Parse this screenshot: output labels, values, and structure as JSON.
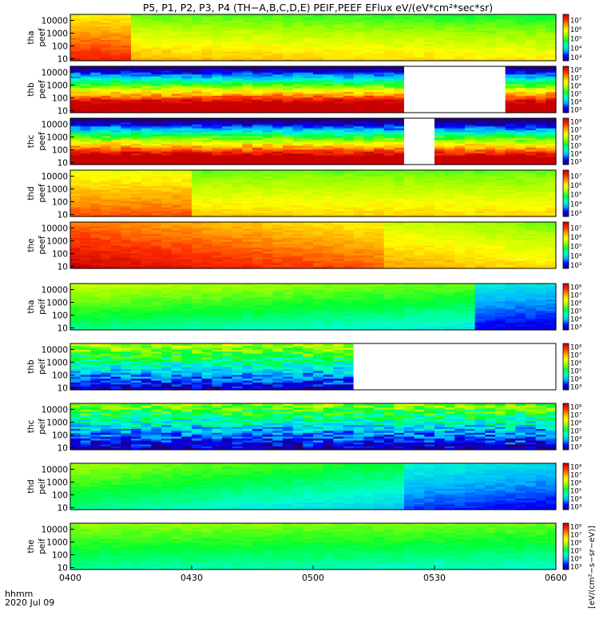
{
  "title": "P5, P1, P2, P3, P4 (TH−A,B,C,D,E) PEIF,PEEF EFlux eV/(eV*cm²*sec*sr)",
  "time_axis": {
    "row_label": "hhmm",
    "date_label": "2020 Jul 09",
    "tick_labels": [
      "0400",
      "0430",
      "0500",
      "0530",
      "0600"
    ]
  },
  "colorbar_label": "[eV/(cm²−s−sr−eV)]",
  "colors": {
    "missing": "#ffffff",
    "frame": "#000000",
    "colormap": [
      "#20007a",
      "#0000ff",
      "#00b4ff",
      "#00ffd0",
      "#00ff30",
      "#a0ff00",
      "#ffff00",
      "#ffa000",
      "#ff3000",
      "#c80000"
    ]
  },
  "chart_data": {
    "type": "heatmap",
    "x_range_minutes": [
      0,
      120
    ],
    "x_ticks": [
      "0400",
      "0430",
      "0500",
      "0530",
      "0600"
    ],
    "y_scale": "log",
    "y_range_eV": [
      7,
      30000
    ],
    "y_tick_labels": [
      "10",
      "100",
      "1000",
      "10000"
    ],
    "panels": [
      {
        "id": "tha_peef",
        "probe": "tha",
        "species": "peef",
        "label_top": "tha",
        "label_bottom": "peef",
        "cbar_ticks": [
          "10³",
          "10⁴",
          "10⁵",
          "10⁶",
          "10⁷"
        ],
        "cbar_range_exp": [
          2.6,
          7.6
        ],
        "gaps": [],
        "base": 5.9,
        "trend": -0.4,
        "e_slope": -0.35,
        "features": [
          {
            "type": "bump",
            "t0": 0,
            "t1": 15,
            "amp": 0.8
          }
        ]
      },
      {
        "id": "thb_peef",
        "probe": "thb",
        "species": "peef",
        "label_top": "thb",
        "label_bottom": "peef",
        "cbar_ticks": [
          "10³",
          "10⁴",
          "10⁵",
          "10⁶",
          "10⁷",
          "10⁸"
        ],
        "cbar_range_exp": [
          2.6,
          8.4
        ],
        "gaps": [
          [
            82,
            107
          ]
        ],
        "base": 6.6,
        "trend": 0,
        "e_slope": -2.2,
        "features": [
          {
            "type": "noise",
            "amp": 0.35
          }
        ]
      },
      {
        "id": "thc_peef",
        "probe": "thc",
        "species": "peef",
        "label_top": "thc",
        "label_bottom": "peef",
        "cbar_ticks": [
          "10³",
          "10⁴",
          "10⁵",
          "10⁶",
          "10⁷",
          "10⁸"
        ],
        "cbar_range_exp": [
          2.6,
          8.4
        ],
        "gaps": [
          [
            82,
            89
          ]
        ],
        "base": 6.6,
        "trend": -0.3,
        "e_slope": -2.2,
        "features": [
          {
            "type": "noise",
            "amp": 0.35
          }
        ]
      },
      {
        "id": "thd_peef",
        "probe": "thd",
        "species": "peef",
        "label_top": "thd",
        "label_bottom": "peef",
        "cbar_ticks": [
          "10³",
          "10⁴",
          "10⁵",
          "10⁶",
          "10⁷"
        ],
        "cbar_range_exp": [
          2.6,
          7.6
        ],
        "gaps": [],
        "base": 5.8,
        "trend": -0.1,
        "e_slope": -0.3,
        "features": [
          {
            "type": "bump",
            "t0": 0,
            "t1": 30,
            "amp": 0.6
          }
        ]
      },
      {
        "id": "the_peef",
        "probe": "the",
        "species": "peef",
        "label_top": "the",
        "label_bottom": "peef",
        "cbar_ticks": [
          "10³",
          "10⁴",
          "10⁵",
          "10⁶",
          "10⁷"
        ],
        "cbar_range_exp": [
          2.6,
          7.6
        ],
        "gaps": [],
        "base": 6.9,
        "trend": -1.2,
        "e_slope": -0.25,
        "features": [
          {
            "type": "bump",
            "t0": 0,
            "t1": 78,
            "amp": 0.3
          }
        ]
      },
      {
        "id": "tha_peif",
        "probe": "tha",
        "species": "peif",
        "label_top": "tha",
        "label_bottom": "peif",
        "cbar_ticks": [
          "10³",
          "10⁴",
          "10⁵",
          "10⁶",
          "10⁷",
          "10⁸"
        ],
        "cbar_range_exp": [
          2.6,
          8.4
        ],
        "gaps": [],
        "base": 5.4,
        "trend": -0.6,
        "e_slope": 0.35,
        "features": [
          {
            "type": "bump",
            "t0": 100,
            "t1": 120,
            "amp": -1.2
          }
        ]
      },
      {
        "id": "thb_peif",
        "probe": "thb",
        "species": "peif",
        "label_top": "thb",
        "label_bottom": "peif",
        "cbar_ticks": [
          "10³",
          "10⁴",
          "10⁵",
          "10⁶",
          "10⁷",
          "10⁸"
        ],
        "cbar_range_exp": [
          2.6,
          8.4
        ],
        "gaps": [
          [
            71,
            120
          ]
        ],
        "base": 4.3,
        "trend": 0,
        "e_slope": 0.9,
        "features": [
          {
            "type": "noise",
            "amp": 0.5
          }
        ]
      },
      {
        "id": "thc_peif",
        "probe": "thc",
        "species": "peif",
        "label_top": "thc",
        "label_bottom": "peif",
        "cbar_ticks": [
          "10³",
          "10⁴",
          "10⁵",
          "10⁶",
          "10⁷",
          "10⁸"
        ],
        "cbar_range_exp": [
          2.6,
          8.4
        ],
        "gaps": [],
        "base": 4.1,
        "trend": 0,
        "e_slope": 0.85,
        "features": [
          {
            "type": "noise",
            "amp": 0.6
          }
        ]
      },
      {
        "id": "thd_peif",
        "probe": "thd",
        "species": "peif",
        "label_top": "thd",
        "label_bottom": "peif",
        "cbar_ticks": [
          "10³",
          "10⁴",
          "10⁵",
          "10⁶",
          "10⁷",
          "10⁸"
        ],
        "cbar_range_exp": [
          2.6,
          8.4
        ],
        "gaps": [],
        "base": 5.3,
        "trend": -1.1,
        "e_slope": 0.3,
        "features": [
          {
            "type": "bump",
            "t0": 82,
            "t1": 120,
            "amp": -0.6
          }
        ]
      },
      {
        "id": "the_peif",
        "probe": "the",
        "species": "peif",
        "label_top": "the",
        "label_bottom": "peif",
        "cbar_ticks": [
          "10³",
          "10⁴",
          "10⁵",
          "10⁶",
          "10⁷",
          "10⁸"
        ],
        "cbar_range_exp": [
          2.6,
          8.4
        ],
        "gaps": [],
        "base": 5.2,
        "trend": -0.2,
        "e_slope": 0.3,
        "features": []
      }
    ]
  }
}
